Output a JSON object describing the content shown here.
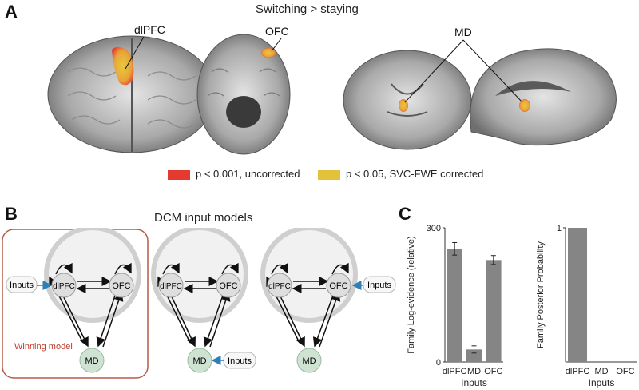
{
  "panelA": {
    "letter": "A",
    "title": "Switching > staying",
    "labels": {
      "dlpfc": "dlPFC",
      "ofc": "OFC",
      "md": "MD"
    },
    "legend": [
      {
        "color": "#e53a2f",
        "text": "p < 0.001, uncorrected"
      },
      {
        "color": "#e2c23a",
        "text": "p < 0.05, SVC-FWE corrected"
      }
    ]
  },
  "panelB": {
    "letter": "B",
    "title": "DCM input models",
    "winning_label": "Winning model",
    "node_labels": {
      "dlpfc": "dlPFC",
      "ofc": "OFC",
      "md": "MD"
    },
    "inputs_label": "Inputs",
    "colors": {
      "winning_border": "#b85a4a",
      "winning_text": "#c0392b",
      "arrow_input": "#2e7fb8",
      "md_node": "#cfe3d2"
    }
  },
  "panelC": {
    "letter": "C",
    "chart_data": [
      {
        "type": "bar",
        "categories": [
          "dlPFC",
          "MD",
          "OFC"
        ],
        "values": [
          253,
          28,
          228
        ],
        "errors": [
          14,
          8,
          10
        ],
        "ylabel": "Family Log-evidence (relative)",
        "xlabel": "Inputs",
        "yticks": [
          "300",
          "0"
        ],
        "ylim": [
          0,
          300
        ],
        "bar_color": "#858585"
      },
      {
        "type": "bar",
        "categories": [
          "dlPFC",
          "MD",
          "OFC"
        ],
        "values": [
          1,
          0,
          0
        ],
        "ylabel": "Family Posterior Probability",
        "xlabel": "Inputs",
        "yticks": [
          "1"
        ],
        "ylim": [
          0,
          1
        ],
        "bar_color": "#858585"
      }
    ]
  }
}
